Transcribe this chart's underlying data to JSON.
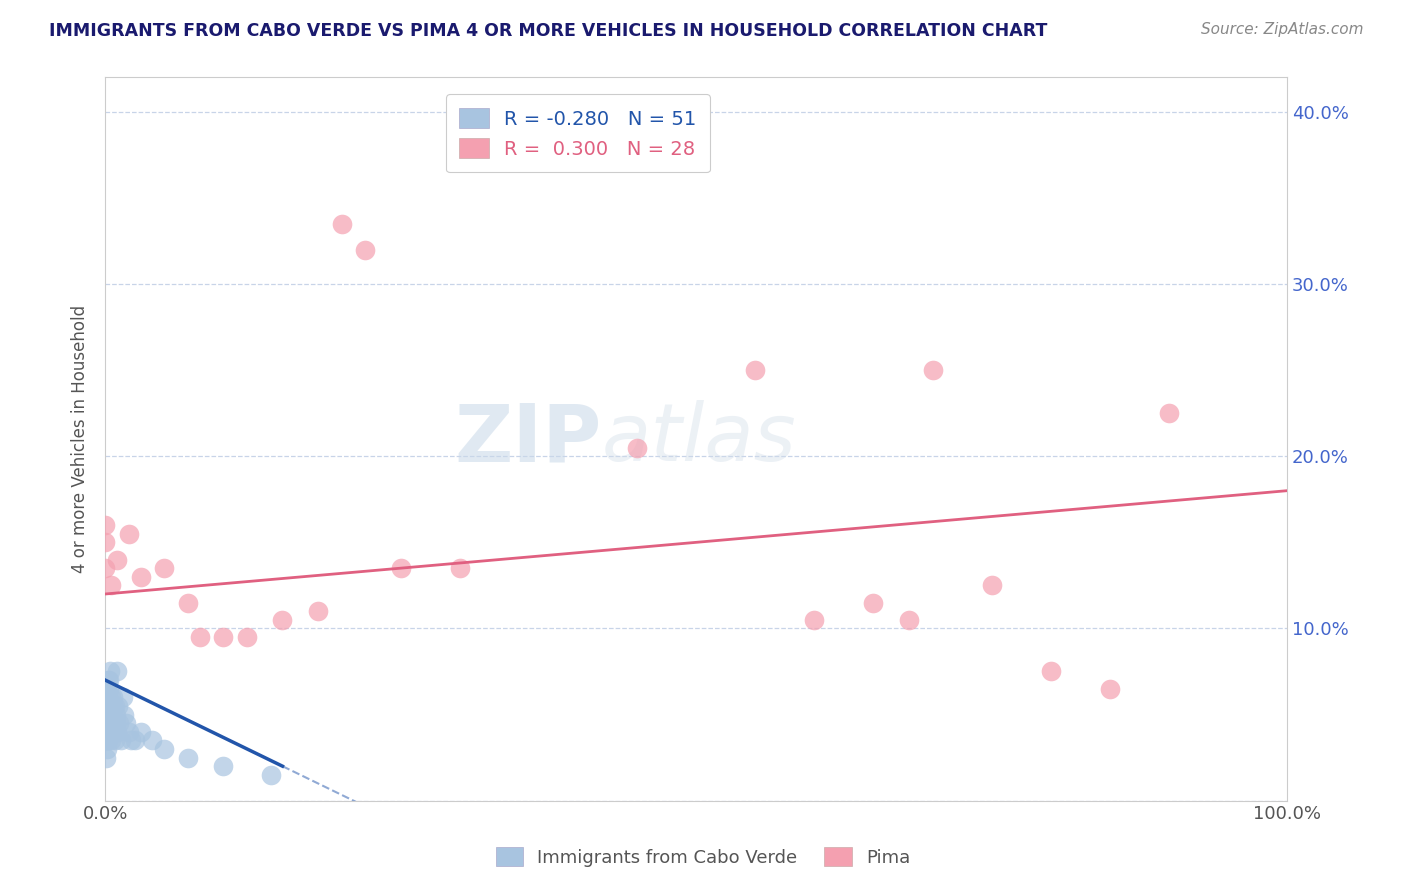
{
  "title": "IMMIGRANTS FROM CABO VERDE VS PIMA 4 OR MORE VEHICLES IN HOUSEHOLD CORRELATION CHART",
  "source_text": "Source: ZipAtlas.com",
  "ylabel": "4 or more Vehicles in Household",
  "watermark_zip": "ZIP",
  "watermark_atlas": "atlas",
  "xlim": [
    0.0,
    100.0
  ],
  "ylim": [
    0.0,
    42.0
  ],
  "cabo_verde_R": -0.28,
  "cabo_verde_N": 51,
  "pima_R": 0.3,
  "pima_N": 28,
  "cabo_verde_color": "#a8c4e0",
  "pima_color": "#f4a0b0",
  "cabo_verde_line_color": "#2255aa",
  "pima_line_color": "#e06080",
  "cabo_verde_scatter_x": [
    0.05,
    0.08,
    0.1,
    0.1,
    0.12,
    0.12,
    0.15,
    0.15,
    0.18,
    0.18,
    0.2,
    0.2,
    0.22,
    0.25,
    0.25,
    0.28,
    0.3,
    0.3,
    0.35,
    0.35,
    0.4,
    0.4,
    0.45,
    0.48,
    0.5,
    0.55,
    0.6,
    0.65,
    0.7,
    0.75,
    0.8,
    0.85,
    0.9,
    0.95,
    1.0,
    1.0,
    1.1,
    1.2,
    1.3,
    1.5,
    1.6,
    1.8,
    2.0,
    2.2,
    2.5,
    3.0,
    4.0,
    5.0,
    7.0,
    10.0,
    14.0
  ],
  "cabo_verde_scatter_y": [
    3.5,
    4.0,
    2.5,
    5.0,
    3.0,
    6.0,
    4.5,
    5.5,
    3.5,
    6.5,
    4.0,
    7.0,
    5.0,
    3.5,
    6.0,
    4.5,
    5.5,
    7.0,
    4.0,
    6.5,
    5.0,
    7.5,
    3.5,
    6.0,
    5.5,
    4.5,
    5.0,
    6.0,
    5.5,
    4.0,
    5.5,
    3.5,
    4.5,
    5.0,
    4.0,
    7.5,
    5.5,
    4.5,
    3.5,
    6.0,
    5.0,
    4.5,
    4.0,
    3.5,
    3.5,
    4.0,
    3.5,
    3.0,
    2.5,
    2.0,
    1.5
  ],
  "pima_scatter_x": [
    0.0,
    0.0,
    0.0,
    0.5,
    1.0,
    2.0,
    3.0,
    5.0,
    7.0,
    8.0,
    10.0,
    12.0,
    15.0,
    18.0,
    20.0,
    22.0,
    25.0,
    30.0,
    45.0,
    55.0,
    60.0,
    65.0,
    68.0,
    70.0,
    75.0,
    80.0,
    85.0,
    90.0
  ],
  "pima_scatter_y": [
    13.5,
    15.0,
    16.0,
    12.5,
    14.0,
    15.5,
    13.0,
    13.5,
    11.5,
    9.5,
    9.5,
    9.5,
    10.5,
    11.0,
    33.5,
    32.0,
    13.5,
    13.5,
    20.5,
    25.0,
    10.5,
    11.5,
    10.5,
    25.0,
    12.5,
    7.5,
    6.5,
    22.5
  ],
  "background_color": "#ffffff",
  "grid_color": "#c8d4e8",
  "title_color": "#1a1a6e",
  "axis_label_color": "#555555",
  "right_ytick_color": "#4466cc"
}
